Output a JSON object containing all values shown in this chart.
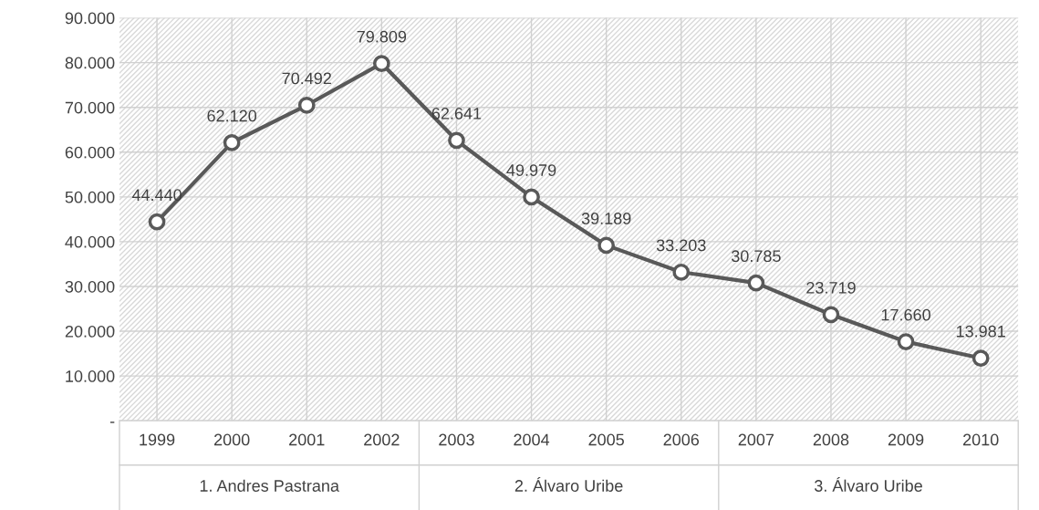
{
  "chart_data": {
    "type": "line",
    "categories": [
      "1999",
      "2000",
      "2001",
      "2002",
      "2003",
      "2004",
      "2005",
      "2006",
      "2007",
      "2008",
      "2009",
      "2010"
    ],
    "series": [
      {
        "color": "#595959",
        "values": [
          44440,
          62120,
          70492,
          79809,
          62641,
          49979,
          39189,
          33203,
          30785,
          23719,
          17660,
          13981
        ]
      }
    ],
    "value_labels": [
      "44.440",
      "62.120",
      "70.492",
      "79.809",
      "62.641",
      "49.979",
      "39.189",
      "33.203",
      "30.785",
      "23.719",
      "17.660",
      "13.981"
    ],
    "ylim": [
      0,
      90000
    ],
    "yticks": [
      {
        "value": 0,
        "label": "-"
      },
      {
        "value": 10000,
        "label": "10.000"
      },
      {
        "value": 20000,
        "label": "20.000"
      },
      {
        "value": 30000,
        "label": "30.000"
      },
      {
        "value": 40000,
        "label": "40.000"
      },
      {
        "value": 50000,
        "label": "50.000"
      },
      {
        "value": 60000,
        "label": "60.000"
      },
      {
        "value": 70000,
        "label": "70.000"
      },
      {
        "value": 80000,
        "label": "80.000"
      },
      {
        "value": 90000,
        "label": "90.000"
      }
    ],
    "grid": true,
    "marker": "circle",
    "line_style": "solid",
    "legend": false,
    "annotations": [
      "1. Andres Pastrana",
      "2. Álvaro Uribe",
      "3. Álvaro Uribe"
    ]
  }
}
